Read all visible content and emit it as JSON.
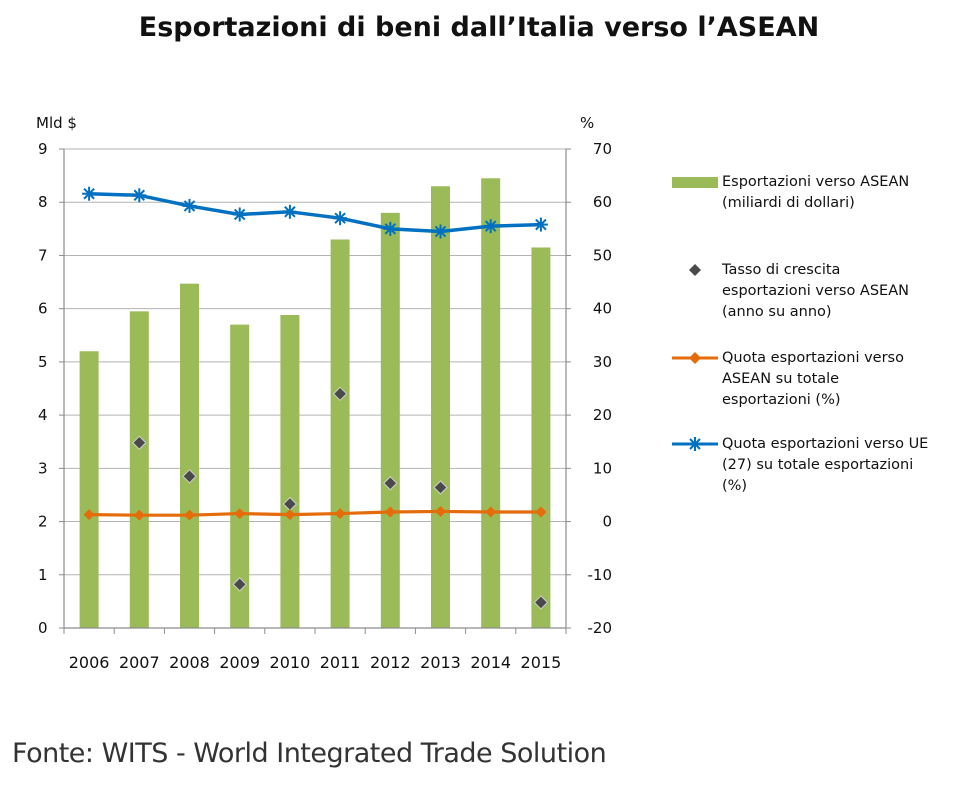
{
  "title": "Esportazioni di beni dall’Italia verso l’ASEAN",
  "source": "Fonte: WITS - World Integrated Trade Solution",
  "colors": {
    "bars": "#9bbb59",
    "growth": "#4a4a4a",
    "share_asean": "#e46c0a",
    "share_eu": "#0070c0",
    "axis": "#8c8c8c",
    "grid": "#b3b3b3"
  },
  "chart_data": {
    "type": "bar",
    "categories": [
      "2006",
      "2007",
      "2008",
      "2009",
      "2010",
      "2011",
      "2012",
      "2013",
      "2014",
      "2015"
    ],
    "left_axis": {
      "label": "Mld $",
      "ylim": [
        0,
        9
      ],
      "ticks": [
        "0",
        "1",
        "2",
        "3",
        "4",
        "5",
        "6",
        "7",
        "8",
        "9"
      ]
    },
    "right_axis": {
      "label": "%",
      "ylim": [
        -20,
        70
      ],
      "ticks": [
        "-20",
        "-10",
        "0",
        "10",
        "20",
        "30",
        "40",
        "50",
        "60",
        "70"
      ]
    },
    "grid": true,
    "legend_position": "right",
    "series": [
      {
        "name": "Esportazioni verso ASEAN (miliardi di dollari)",
        "type": "bar",
        "axis": "left",
        "values": [
          5.2,
          5.95,
          6.47,
          5.7,
          5.88,
          7.3,
          7.8,
          8.3,
          8.45,
          7.15
        ]
      },
      {
        "name": "Tasso di crescita esportazioni verso ASEAN (anno su anno)",
        "type": "scatter",
        "marker": "diamond",
        "axis": "right",
        "values": [
          null,
          14.8,
          8.5,
          -11.8,
          3.3,
          24,
          7.2,
          6.4,
          null,
          -15.2
        ]
      },
      {
        "name": "Quota esportazioni verso ASEAN su totale esportazioni (%)",
        "type": "line",
        "marker": "diamond",
        "axis": "right",
        "values": [
          1.3,
          1.2,
          1.2,
          1.5,
          1.3,
          1.5,
          1.8,
          1.9,
          1.8,
          1.8
        ]
      },
      {
        "name": "Quota esportazioni verso UE (27) su totale esportazioni (%)",
        "type": "line",
        "marker": "asterisk",
        "axis": "right",
        "values": [
          61.6,
          61.3,
          59.3,
          57.7,
          58.2,
          57.0,
          55.0,
          54.5,
          55.5,
          55.8
        ]
      }
    ]
  },
  "legend": [
    {
      "symbol": "bar",
      "lines": [
        "Esportazioni verso ASEAN",
        "(miliardi di dollari)"
      ]
    },
    {
      "symbol": "diamond",
      "lines": [
        "Tasso di crescita",
        "esportazioni verso ASEAN",
        "(anno su anno)"
      ]
    },
    {
      "symbol": "line-diamond",
      "lines": [
        "Quota esportazioni verso",
        "ASEAN su totale",
        "esportazioni (%)"
      ]
    },
    {
      "symbol": "line-asterisk",
      "lines": [
        "Quota esportazioni verso UE",
        "(27) su totale esportazioni",
        "(%)"
      ]
    }
  ]
}
